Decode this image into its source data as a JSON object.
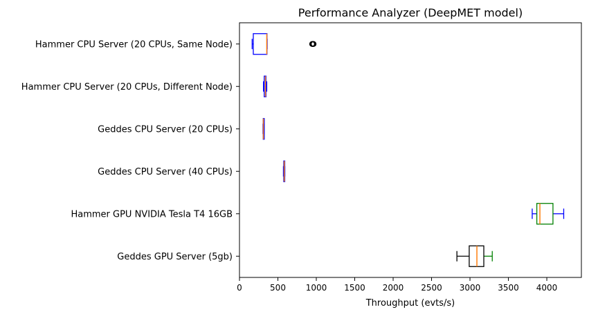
{
  "chart_data": {
    "type": "boxplot",
    "orientation": "horizontal",
    "title": "Performance Analyzer (DeepMET model)",
    "xlabel": "Throughput (evts/s)",
    "ylabel": "",
    "xlim": [
      0,
      4450
    ],
    "xticks": [
      0,
      500,
      1000,
      1500,
      2000,
      2500,
      3000,
      3500,
      4000
    ],
    "grid": false,
    "categories": [
      "Hammer CPU Server (20 CPUs, Same Node)",
      "Hammer CPU Server (20 CPUs, Different Node)",
      "Geddes CPU Server (20 CPUs)",
      "Geddes CPU Server (40 CPUs)",
      "Hammer GPU NVIDIA Tesla T4 16GB",
      "Geddes GPU Server (5gb)"
    ],
    "boxes": [
      {
        "category": "Hammer CPU Server (20 CPUs, Same Node)",
        "whisker_low": 165,
        "q1": 180,
        "median": 355,
        "q3": 358,
        "whisker_high": 360,
        "outliers": [
          945,
          950,
          955,
          960,
          965
        ],
        "box_color": "#0000ff",
        "whisker_color": "#0000ff",
        "median_color": "#ff7f0e",
        "flier_color": "#000000"
      },
      {
        "category": "Hammer CPU Server (20 CPUs, Different Node)",
        "whisker_low": 312,
        "q1": 322,
        "median": 338,
        "q3": 345,
        "whisker_high": 355,
        "outliers": [],
        "box_color": "#0000ff",
        "whisker_color": "#0000ff",
        "median_color": "#ff7f0e",
        "flier_color": "#000000"
      },
      {
        "category": "Geddes CPU Server (20 CPUs)",
        "whisker_low": 306,
        "q1": 309,
        "median": 311,
        "q3": 313,
        "whisker_high": 316,
        "outliers": [],
        "box_color": "#0000ff",
        "whisker_color": "#0000ff",
        "median_color": "#ff7f0e",
        "flier_color": "#000000"
      },
      {
        "category": "Geddes CPU Server (40 CPUs)",
        "whisker_low": 572,
        "q1": 576,
        "median": 583,
        "q3": 586,
        "whisker_high": 590,
        "outliers": [],
        "box_color": "#0000ff",
        "whisker_color": "#0000ff",
        "median_color": "#ff7f0e",
        "flier_color": "#000000"
      },
      {
        "category": "Hammer GPU NVIDIA Tesla T4 16GB",
        "whisker_low": 3810,
        "q1": 3870,
        "median": 3910,
        "q3": 4080,
        "whisker_high": 4220,
        "outliers": [],
        "box_color": "#008000",
        "whisker_color": "#0000ff",
        "median_color": "#ff7f0e",
        "flier_color": "#000000"
      },
      {
        "category": "Geddes GPU Server (5gb)",
        "whisker_low": 2830,
        "q1": 2990,
        "median": 3090,
        "q3": 3180,
        "whisker_high": 3290,
        "outliers": [],
        "box_color": "#000000",
        "whisker_low_color": "#000000",
        "whisker_high_color": "#008000",
        "median_color": "#ff7f0e",
        "flier_color": "#000000"
      }
    ]
  }
}
